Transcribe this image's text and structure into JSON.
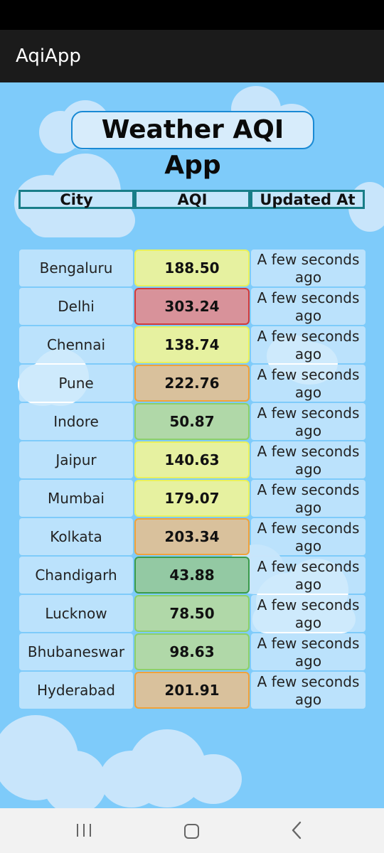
{
  "app": {
    "title": "AqiApp"
  },
  "hero": {
    "title": "Weather AQI App"
  },
  "table": {
    "headers": [
      "City",
      "AQI",
      "Updated At"
    ],
    "rows": [
      {
        "city": "Bengaluru",
        "aqi": "188.50",
        "updated": "A few seconds ago",
        "aqi_bg": "#e6f1a0",
        "aqi_border": "#eaf15c"
      },
      {
        "city": "Delhi",
        "aqi": "303.24",
        "updated": "A few seconds ago",
        "aqi_bg": "#d8929a",
        "aqi_border": "#d13a3a"
      },
      {
        "city": "Chennai",
        "aqi": "138.74",
        "updated": "A few seconds ago",
        "aqi_bg": "#e6f1a0",
        "aqi_border": "#eaf15c"
      },
      {
        "city": "Pune",
        "aqi": "222.76",
        "updated": "A few seconds ago",
        "aqi_bg": "#d9c19c",
        "aqi_border": "#f0a23a"
      },
      {
        "city": "Indore",
        "aqi": "50.87",
        "updated": "A few seconds ago",
        "aqi_bg": "#b0d8a8",
        "aqi_border": "#8cd06a"
      },
      {
        "city": "Jaipur",
        "aqi": "140.63",
        "updated": "A few seconds ago",
        "aqi_bg": "#e6f1a0",
        "aqi_border": "#eaf15c"
      },
      {
        "city": "Mumbai",
        "aqi": "179.07",
        "updated": "A few seconds ago",
        "aqi_bg": "#e6f1a0",
        "aqi_border": "#eaf15c"
      },
      {
        "city": "Kolkata",
        "aqi": "203.34",
        "updated": "A few seconds ago",
        "aqi_bg": "#d9c19c",
        "aqi_border": "#f0a23a"
      },
      {
        "city": "Chandigarh",
        "aqi": "43.88",
        "updated": "A few seconds ago",
        "aqi_bg": "#93c9a3",
        "aqi_border": "#3a9a4a"
      },
      {
        "city": "Lucknow",
        "aqi": "78.50",
        "updated": "A few seconds ago",
        "aqi_bg": "#b0d8a8",
        "aqi_border": "#8cd06a"
      },
      {
        "city": "Bhubaneswar",
        "aqi": "98.63",
        "updated": "A few seconds ago",
        "aqi_bg": "#b0d8a8",
        "aqi_border": "#8cd06a"
      },
      {
        "city": "Hyderabad",
        "aqi": "201.91",
        "updated": "A few seconds ago",
        "aqi_bg": "#d9c19c",
        "aqi_border": "#f0a23a"
      }
    ]
  },
  "colors": {
    "background": "#7ecbfa",
    "app_bar": "#1b1b1b",
    "header_border": "#187e88",
    "hero_border": "#1a8ad4"
  },
  "navigation": {
    "icons": [
      "recent-apps-icon",
      "home-icon",
      "back-icon"
    ]
  }
}
